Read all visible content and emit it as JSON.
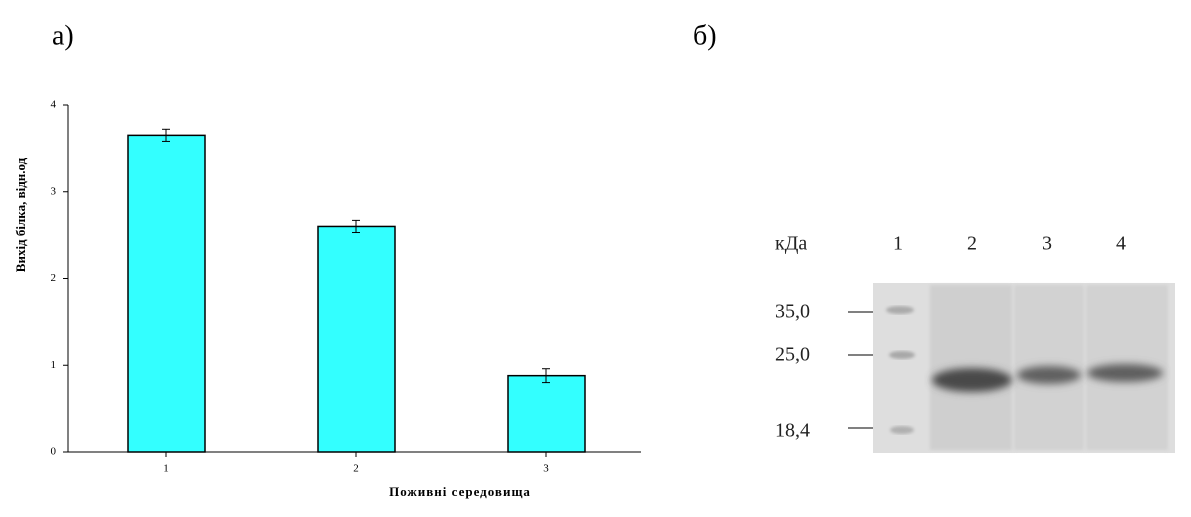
{
  "chart_data": {
    "type": "bar",
    "panel_label": "а)",
    "ylabel": "Вихід білка, відн.од",
    "xlabel": "Поживні середовища",
    "categories": [
      "1",
      "2",
      "3"
    ],
    "values": [
      3.65,
      2.6,
      0.88
    ],
    "errors": [
      0.07,
      0.07,
      0.08
    ],
    "color": "#33ffff",
    "ylim": [
      0,
      4
    ],
    "yticks": [
      0,
      1,
      2,
      3,
      4
    ],
    "grid": false
  },
  "gel": {
    "panel_label": "б)",
    "unit": "кДа",
    "lanes": [
      "1",
      "2",
      "3",
      "4"
    ],
    "markers": [
      "35,0",
      "25,0",
      "18,4"
    ]
  }
}
